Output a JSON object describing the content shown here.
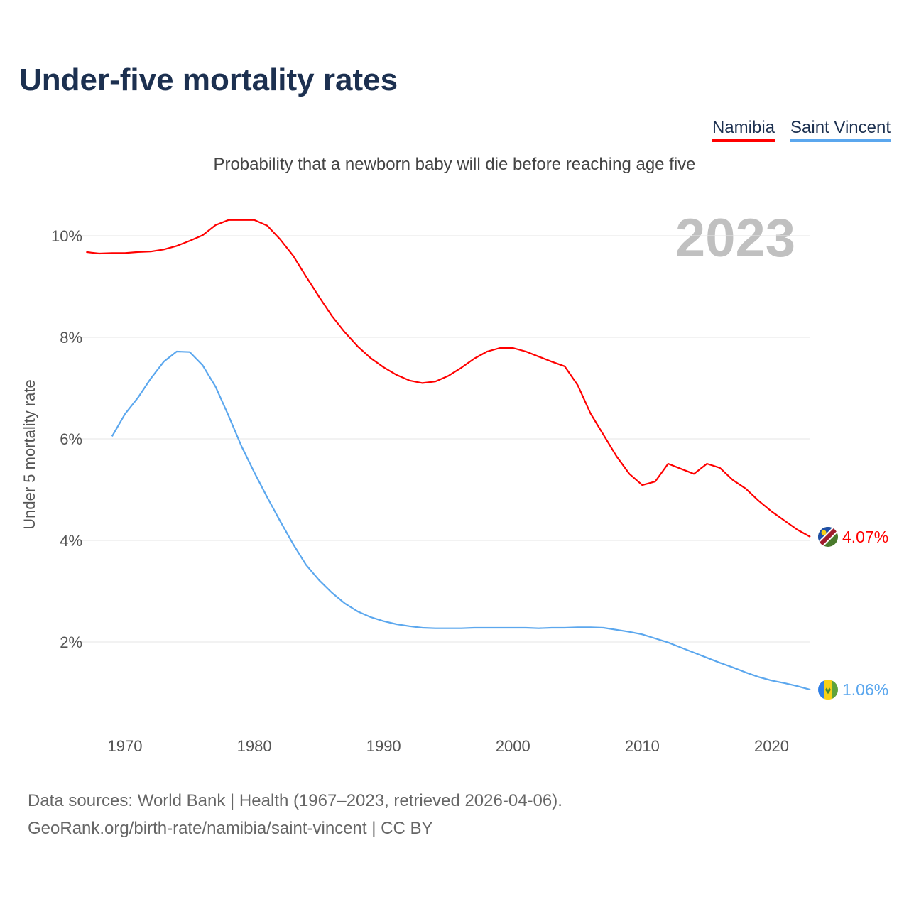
{
  "title": "Under-five mortality rates",
  "subtitle": "Probability that a newborn baby will die before reaching age five",
  "year_label": "2023",
  "source_line1": "Data sources: World Bank | Health (1967–2023, retrieved 2026-04-06).",
  "source_line2": "GeoRank.org/birth-rate/namibia/saint-vincent | CC BY",
  "chart_data": {
    "type": "line",
    "title": "Under-five mortality rates",
    "xlabel": "",
    "ylabel": "Under 5 mortality rate",
    "xlim": [
      1967,
      2023
    ],
    "ylim": [
      0.5,
      10.7
    ],
    "xticks": [
      1970,
      1980,
      1990,
      2000,
      2010,
      2020
    ],
    "yticks": [
      {
        "v": 2,
        "label": "2%"
      },
      {
        "v": 4,
        "label": "4%"
      },
      {
        "v": 6,
        "label": "6%"
      },
      {
        "v": 8,
        "label": "8%"
      },
      {
        "v": 10,
        "label": "10%"
      }
    ],
    "grid": true,
    "legend": "top-right",
    "series": [
      {
        "name": "Namibia",
        "color": "#ff0000",
        "end_label": "4.07%",
        "start": 1967,
        "values": [
          9.68,
          9.65,
          9.66,
          9.66,
          9.68,
          9.69,
          9.73,
          9.8,
          9.9,
          10.01,
          10.21,
          10.31,
          10.31,
          10.31,
          10.2,
          9.93,
          9.61,
          9.2,
          8.8,
          8.42,
          8.1,
          7.82,
          7.59,
          7.41,
          7.26,
          7.15,
          7.1,
          7.13,
          7.24,
          7.4,
          7.58,
          7.72,
          7.79,
          7.79,
          7.72,
          7.62,
          7.52,
          7.43,
          7.06,
          6.5,
          6.08,
          5.66,
          5.31,
          5.09,
          5.16,
          5.51,
          5.41,
          5.31,
          5.51,
          5.43,
          5.19,
          5.02,
          4.78,
          4.57,
          4.39,
          4.21,
          4.07
        ]
      },
      {
        "name": "Saint Vincent",
        "color": "#5ba7ee",
        "end_label": "1.06%",
        "start": 1969,
        "values": [
          6.05,
          6.49,
          6.81,
          7.19,
          7.52,
          7.72,
          7.71,
          7.45,
          7.03,
          6.46,
          5.86,
          5.34,
          4.85,
          4.38,
          3.93,
          3.52,
          3.22,
          2.97,
          2.76,
          2.6,
          2.49,
          2.41,
          2.35,
          2.31,
          2.28,
          2.27,
          2.27,
          2.27,
          2.28,
          2.28,
          2.28,
          2.28,
          2.28,
          2.27,
          2.28,
          2.28,
          2.29,
          2.29,
          2.28,
          2.24,
          2.2,
          2.15,
          2.07,
          1.99,
          1.89,
          1.79,
          1.69,
          1.59,
          1.5,
          1.4,
          1.31,
          1.24,
          1.19,
          1.13,
          1.06
        ]
      }
    ]
  }
}
